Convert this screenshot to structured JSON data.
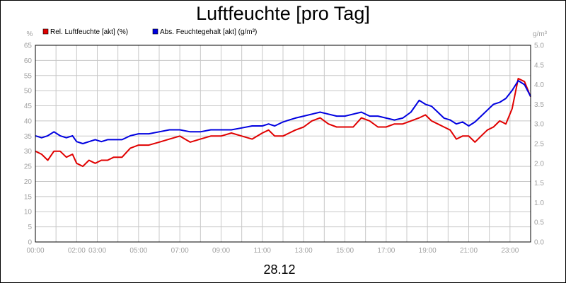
{
  "chart_data": {
    "type": "line",
    "title": "Luftfeuchte [pro Tag]",
    "date_label": "28.12",
    "y_left_unit": "%",
    "y_right_unit": "g/m³",
    "y_left_range": [
      0,
      65
    ],
    "y_right_range": [
      0,
      5.0
    ],
    "y_left_ticks": [
      "0",
      "5",
      "10",
      "15",
      "20",
      "25",
      "30",
      "35",
      "40",
      "45",
      "50",
      "55",
      "60",
      "65"
    ],
    "y_right_ticks": [
      "0.0",
      "0.5",
      "1.0",
      "1.5",
      "2.0",
      "2.5",
      "3.0",
      "3.5",
      "4.0",
      "4.5",
      "5.0"
    ],
    "x_range_hours": [
      0,
      24
    ],
    "x_ticks": [
      {
        "hour": 0,
        "label": "00:00"
      },
      {
        "hour": 2,
        "label": "02:00"
      },
      {
        "hour": 3,
        "label": "03:00"
      },
      {
        "hour": 5,
        "label": "05:00"
      },
      {
        "hour": 7,
        "label": "07:00"
      },
      {
        "hour": 9,
        "label": "09:00"
      },
      {
        "hour": 11,
        "label": "11:00"
      },
      {
        "hour": 13,
        "label": "13:00"
      },
      {
        "hour": 15,
        "label": "15:00"
      },
      {
        "hour": 17,
        "label": "17:00"
      },
      {
        "hour": 19,
        "label": "19:00"
      },
      {
        "hour": 21,
        "label": "21:00"
      },
      {
        "hour": 23,
        "label": "23:00"
      }
    ],
    "grid": true,
    "legend_position": "top-left",
    "series": [
      {
        "name": "Rel. Luftfeuchte [akt] (%)",
        "axis": "left",
        "color": "#e00000",
        "x": [
          0,
          0.3,
          0.6,
          0.9,
          1.2,
          1.5,
          1.8,
          2.0,
          2.3,
          2.6,
          2.9,
          3.2,
          3.5,
          3.8,
          4.2,
          4.6,
          5.0,
          5.5,
          6.0,
          6.5,
          7.0,
          7.5,
          8.0,
          8.5,
          9.0,
          9.5,
          10.0,
          10.5,
          11.0,
          11.3,
          11.6,
          12.0,
          12.3,
          12.6,
          13.0,
          13.4,
          13.8,
          14.2,
          14.6,
          15.0,
          15.4,
          15.8,
          16.2,
          16.6,
          17.0,
          17.4,
          17.8,
          18.2,
          18.6,
          18.9,
          19.2,
          19.5,
          19.8,
          20.1,
          20.4,
          20.7,
          21.0,
          21.3,
          21.6,
          21.9,
          22.2,
          22.5,
          22.8,
          23.1,
          23.4,
          23.7,
          24.0
        ],
        "y": [
          30,
          29,
          27,
          30,
          30,
          28,
          29,
          26,
          25,
          27,
          26,
          27,
          27,
          28,
          28,
          31,
          32,
          32,
          33,
          34,
          35,
          33,
          34,
          35,
          35,
          36,
          35,
          34,
          36,
          37,
          35,
          35,
          36,
          37,
          38,
          40,
          41,
          39,
          38,
          38,
          38,
          41,
          40,
          38,
          38,
          39,
          39,
          40,
          41,
          42,
          40,
          39,
          38,
          37,
          34,
          35,
          35,
          33,
          35,
          37,
          38,
          40,
          39,
          44,
          54,
          53,
          48
        ]
      },
      {
        "name": "Abs. Feuchtegehalt [akt] (g/m³)",
        "axis": "right",
        "color": "#0000e0",
        "x": [
          0,
          0.3,
          0.6,
          0.9,
          1.2,
          1.5,
          1.8,
          2.0,
          2.3,
          2.6,
          2.9,
          3.2,
          3.5,
          3.8,
          4.2,
          4.6,
          5.0,
          5.5,
          6.0,
          6.5,
          7.0,
          7.5,
          8.0,
          8.5,
          9.0,
          9.5,
          10.0,
          10.5,
          11.0,
          11.3,
          11.6,
          12.0,
          12.3,
          12.6,
          13.0,
          13.4,
          13.8,
          14.2,
          14.6,
          15.0,
          15.4,
          15.8,
          16.2,
          16.6,
          17.0,
          17.4,
          17.8,
          18.2,
          18.6,
          18.9,
          19.2,
          19.5,
          19.8,
          20.1,
          20.4,
          20.7,
          21.0,
          21.3,
          21.6,
          21.9,
          22.2,
          22.5,
          22.8,
          23.1,
          23.4,
          23.7,
          24.0
        ],
        "y": [
          2.7,
          2.65,
          2.7,
          2.8,
          2.7,
          2.65,
          2.7,
          2.55,
          2.5,
          2.55,
          2.6,
          2.55,
          2.6,
          2.6,
          2.6,
          2.7,
          2.75,
          2.75,
          2.8,
          2.85,
          2.85,
          2.8,
          2.8,
          2.85,
          2.85,
          2.85,
          2.9,
          2.95,
          2.95,
          3.0,
          2.95,
          3.05,
          3.1,
          3.15,
          3.2,
          3.25,
          3.3,
          3.25,
          3.2,
          3.2,
          3.25,
          3.3,
          3.2,
          3.2,
          3.15,
          3.1,
          3.15,
          3.3,
          3.6,
          3.5,
          3.45,
          3.3,
          3.15,
          3.1,
          3.0,
          3.05,
          2.95,
          3.05,
          3.2,
          3.35,
          3.5,
          3.55,
          3.65,
          3.85,
          4.1,
          4.0,
          3.7
        ]
      }
    ]
  }
}
